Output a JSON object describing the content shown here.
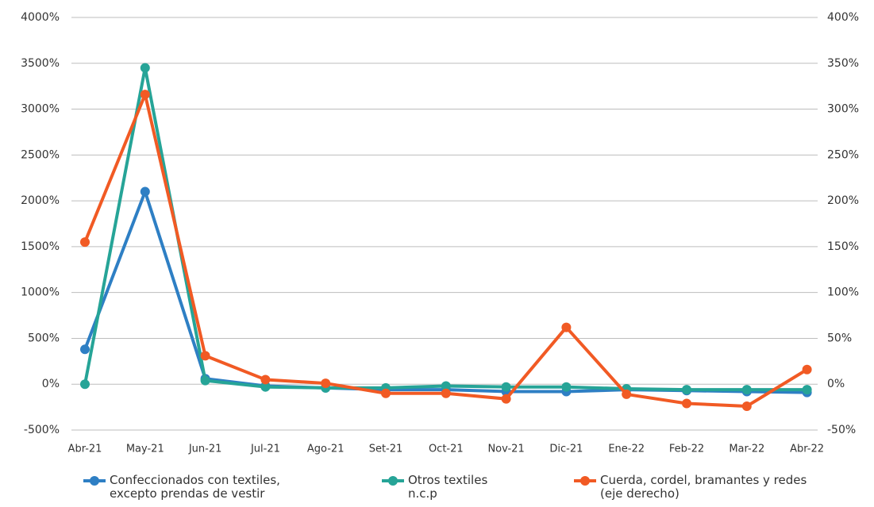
{
  "chart_data": {
    "type": "line",
    "categories": [
      "Abr-21",
      "May-21",
      "Jun-21",
      "Jul-21",
      "Ago-21",
      "Set-21",
      "Oct-21",
      "Nov-21",
      "Dic-21",
      "Ene-22",
      "Feb-22",
      "Mar-22",
      "Abr-22"
    ],
    "series": [
      {
        "name": "Confeccionados con textiles, excepto prendas de vestir",
        "color": "#2e7fc4",
        "values": [
          380,
          2100,
          60,
          -20,
          -40,
          -60,
          -60,
          -80,
          -80,
          -60,
          -70,
          -80,
          -90
        ]
      },
      {
        "name": "Otros textiles n.c.p",
        "color": "#26a497",
        "values": [
          0,
          3450,
          40,
          -30,
          -40,
          -40,
          -20,
          -30,
          -30,
          -50,
          -60,
          -60,
          -60
        ]
      },
      {
        "name": "Cuerda, cordel, bramantes y redes (eje derecho)",
        "color": "#f15a24",
        "axis": "y2",
        "values": [
          155,
          316,
          31,
          5,
          1,
          -10,
          -10,
          -16,
          62,
          -11,
          -21,
          -24,
          16
        ]
      }
    ],
    "ylim": [
      -500,
      4000
    ],
    "yticks": [
      {
        "value": -500,
        "label": "-500%"
      },
      {
        "value": 0,
        "label": "0%"
      },
      {
        "value": 500,
        "label": "500%"
      },
      {
        "value": 1000,
        "label": "1000%"
      },
      {
        "value": 1500,
        "label": "1500%"
      },
      {
        "value": 2000,
        "label": "2000%"
      },
      {
        "value": 2500,
        "label": "2500%"
      },
      {
        "value": 3000,
        "label": "3000%"
      },
      {
        "value": 3500,
        "label": "3500%"
      },
      {
        "value": 4000,
        "label": "4000%"
      }
    ],
    "y2lim": [
      -50,
      400
    ],
    "y2ticks": [
      {
        "value": -50,
        "label": "-50%"
      },
      {
        "value": 0,
        "label": "0%"
      },
      {
        "value": 50,
        "label": "50%"
      },
      {
        "value": 100,
        "label": "100%"
      },
      {
        "value": 150,
        "label": "150%"
      },
      {
        "value": 200,
        "label": "200%"
      },
      {
        "value": 250,
        "label": "250%"
      },
      {
        "value": 300,
        "label": "300%"
      },
      {
        "value": 350,
        "label": "350%"
      },
      {
        "value": 400,
        "label": "400%"
      }
    ],
    "grid": true,
    "legend": "bottom"
  }
}
